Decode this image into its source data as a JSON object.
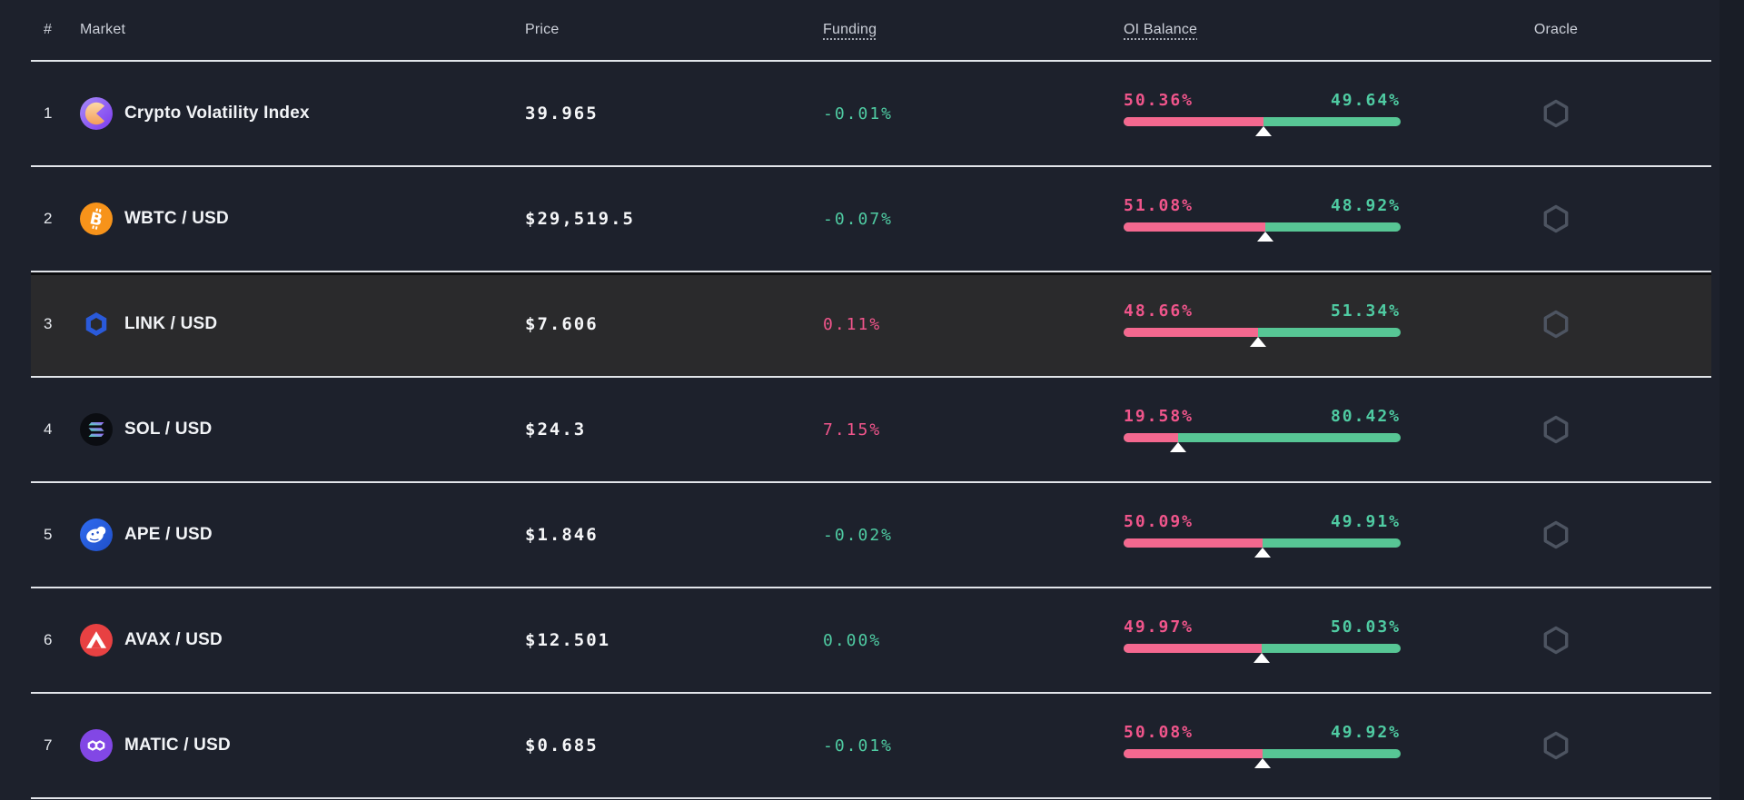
{
  "header": {
    "columns": [
      {
        "label": "#"
      },
      {
        "label": "Market"
      },
      {
        "label": "Price"
      },
      {
        "label": "Funding",
        "dotted": true
      },
      {
        "label": "OI Balance",
        "dotted": true
      },
      {
        "label": "Oracle"
      }
    ]
  },
  "rows": [
    {
      "rank": "1",
      "name": "Crypto Volatility Index",
      "icon": "cvi-icon",
      "price": "39.965",
      "funding": {
        "text": "-0.01%",
        "tone": "green"
      },
      "oi": {
        "long": "50.36%",
        "short": "49.64%",
        "long_pct": 50.36
      },
      "highlighted": false
    },
    {
      "rank": "2",
      "name": "WBTC / USD",
      "icon": "wbtc-icon",
      "price": "$29,519.5",
      "funding": {
        "text": "-0.07%",
        "tone": "green"
      },
      "oi": {
        "long": "51.08%",
        "short": "48.92%",
        "long_pct": 51.08
      },
      "highlighted": false
    },
    {
      "rank": "3",
      "name": "LINK / USD",
      "icon": "link-icon",
      "price": "$7.606",
      "funding": {
        "text": "0.11%",
        "tone": "pink"
      },
      "oi": {
        "long": "48.66%",
        "short": "51.34%",
        "long_pct": 48.66
      },
      "highlighted": true
    },
    {
      "rank": "4",
      "name": "SOL / USD",
      "icon": "sol-icon",
      "price": "$24.3",
      "funding": {
        "text": "7.15%",
        "tone": "pink"
      },
      "oi": {
        "long": "19.58%",
        "short": "80.42%",
        "long_pct": 19.58
      },
      "highlighted": false
    },
    {
      "rank": "5",
      "name": "APE / USD",
      "icon": "ape-icon",
      "price": "$1.846",
      "funding": {
        "text": "-0.02%",
        "tone": "green"
      },
      "oi": {
        "long": "50.09%",
        "short": "49.91%",
        "long_pct": 50.09
      },
      "highlighted": false
    },
    {
      "rank": "6",
      "name": "AVAX / USD",
      "icon": "avax-icon",
      "price": "$12.501",
      "funding": {
        "text": "0.00%",
        "tone": "green"
      },
      "oi": {
        "long": "49.97%",
        "short": "50.03%",
        "long_pct": 49.97
      },
      "highlighted": false
    },
    {
      "rank": "7",
      "name": "MATIC / USD",
      "icon": "matic-icon",
      "price": "$0.685",
      "funding": {
        "text": "-0.01%",
        "tone": "green"
      },
      "oi": {
        "long": "50.08%",
        "short": "49.92%",
        "long_pct": 50.08
      },
      "highlighted": false
    }
  ],
  "oracle_icon": "chainlink-hexagon-icon",
  "colors": {
    "background": "#1d212c",
    "row_highlight": "#2a2a2c",
    "divider": "#e2e5ea",
    "text_primary": "#f2f4f7",
    "text_header": "#ccd0d9",
    "funding_green": "#4fcba2",
    "funding_pink": "#f0558b",
    "bar_pink": "#f4688f",
    "bar_green": "#57c695",
    "oracle_gray": "#4d5461",
    "wbtc_orange": "#f7931a",
    "link_blue": "#2a5ada",
    "avax_red": "#e84142",
    "matic_purple": "#8247e5",
    "ape_blue": "#2a5fe0",
    "cvi_purple": "#7c3aed"
  }
}
